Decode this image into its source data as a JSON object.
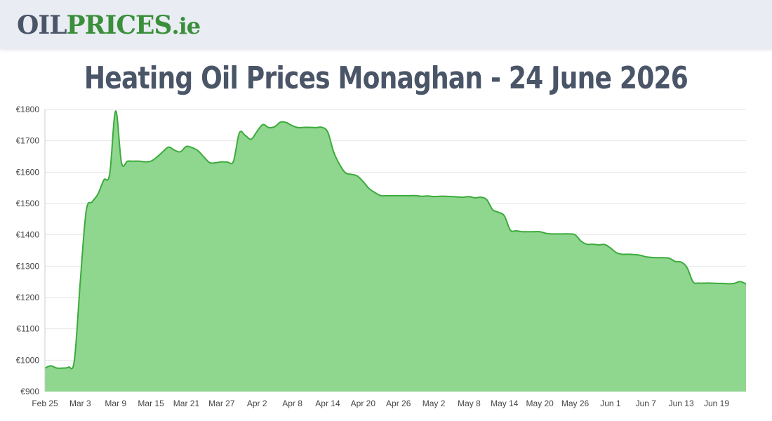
{
  "header": {
    "logo_oil": "OIL",
    "logo_prices": "PRICES",
    "logo_tld": ".ie"
  },
  "page": {
    "title": "Heating Oil Prices Monaghan - 24 June 2026"
  },
  "colors": {
    "line": "#3cab3c",
    "fill": "#8fd68f",
    "grid": "#e6e6e6"
  },
  "chart_data": {
    "type": "area",
    "title": "Heating Oil Prices Monaghan - 24 June 2026",
    "xlabel": "",
    "ylabel": "",
    "grid": true,
    "legend": "none",
    "ylim": [
      900,
      1800
    ],
    "y_ticks": [
      900,
      1000,
      1100,
      1200,
      1300,
      1400,
      1500,
      1600,
      1700,
      1800
    ],
    "y_tick_labels": [
      "€900",
      "€1000",
      "€1100",
      "€1200",
      "€1300",
      "€1400",
      "€1500",
      "€1600",
      "€1700",
      "€1800"
    ],
    "x_range": [
      "2026-02-25",
      "2026-06-24"
    ],
    "x_ticks": [
      "2026-02-25",
      "2026-03-03",
      "2026-03-09",
      "2026-03-15",
      "2026-03-21",
      "2026-03-27",
      "2026-04-02",
      "2026-04-08",
      "2026-04-14",
      "2026-04-20",
      "2026-04-26",
      "2026-05-02",
      "2026-05-08",
      "2026-05-14",
      "2026-05-20",
      "2026-05-26",
      "2026-06-01",
      "2026-06-07",
      "2026-06-13",
      "2026-06-19"
    ],
    "x_tick_labels": [
      "Feb 25",
      "Mar 3",
      "Mar 9",
      "Mar 15",
      "Mar 21",
      "Mar 27",
      "Apr 2",
      "Apr 8",
      "Apr 14",
      "Apr 20",
      "Apr 26",
      "May 2",
      "May 8",
      "May 14",
      "May 20",
      "May 26",
      "Jun 1",
      "Jun 7",
      "Jun 13",
      "Jun 19"
    ],
    "series": [
      {
        "points": [
          [
            "2026-02-25",
            975
          ],
          [
            "2026-02-26",
            982
          ],
          [
            "2026-02-27",
            975
          ],
          [
            "2026-02-28",
            975
          ],
          [
            "2026-03-01",
            978
          ],
          [
            "2026-03-02",
            1000
          ],
          [
            "2026-03-03",
            1250
          ],
          [
            "2026-03-04",
            1475
          ],
          [
            "2026-03-05",
            1505
          ],
          [
            "2026-03-06",
            1530
          ],
          [
            "2026-03-07",
            1575
          ],
          [
            "2026-03-08",
            1595
          ],
          [
            "2026-03-09",
            1795
          ],
          [
            "2026-03-10",
            1630
          ],
          [
            "2026-03-11",
            1635
          ],
          [
            "2026-03-12",
            1635
          ],
          [
            "2026-03-13",
            1635
          ],
          [
            "2026-03-14",
            1633
          ],
          [
            "2026-03-15",
            1635
          ],
          [
            "2026-03-16",
            1648
          ],
          [
            "2026-03-17",
            1665
          ],
          [
            "2026-03-18",
            1680
          ],
          [
            "2026-03-19",
            1670
          ],
          [
            "2026-03-20",
            1665
          ],
          [
            "2026-03-21",
            1682
          ],
          [
            "2026-03-22",
            1678
          ],
          [
            "2026-03-23",
            1668
          ],
          [
            "2026-03-24",
            1648
          ],
          [
            "2026-03-25",
            1630
          ],
          [
            "2026-03-26",
            1630
          ],
          [
            "2026-03-27",
            1633
          ],
          [
            "2026-03-28",
            1632
          ],
          [
            "2026-03-29",
            1635
          ],
          [
            "2026-03-30",
            1725
          ],
          [
            "2026-03-31",
            1717
          ],
          [
            "2026-04-01",
            1705
          ],
          [
            "2026-04-02",
            1730
          ],
          [
            "2026-04-03",
            1752
          ],
          [
            "2026-04-04",
            1742
          ],
          [
            "2026-04-05",
            1745
          ],
          [
            "2026-04-06",
            1760
          ],
          [
            "2026-04-07",
            1758
          ],
          [
            "2026-04-08",
            1748
          ],
          [
            "2026-04-09",
            1742
          ],
          [
            "2026-04-10",
            1743
          ],
          [
            "2026-04-11",
            1743
          ],
          [
            "2026-04-12",
            1742
          ],
          [
            "2026-04-13",
            1743
          ],
          [
            "2026-04-14",
            1728
          ],
          [
            "2026-04-15",
            1665
          ],
          [
            "2026-04-16",
            1625
          ],
          [
            "2026-04-17",
            1598
          ],
          [
            "2026-04-18",
            1593
          ],
          [
            "2026-04-19",
            1588
          ],
          [
            "2026-04-20",
            1570
          ],
          [
            "2026-04-21",
            1548
          ],
          [
            "2026-04-22",
            1535
          ],
          [
            "2026-04-23",
            1525
          ],
          [
            "2026-04-24",
            1525
          ],
          [
            "2026-04-25",
            1525
          ],
          [
            "2026-04-26",
            1525
          ],
          [
            "2026-04-27",
            1525
          ],
          [
            "2026-04-28",
            1525
          ],
          [
            "2026-04-29",
            1525
          ],
          [
            "2026-04-30",
            1523
          ],
          [
            "2026-05-01",
            1524
          ],
          [
            "2026-05-02",
            1522
          ],
          [
            "2026-05-03",
            1523
          ],
          [
            "2026-05-04",
            1523
          ],
          [
            "2026-05-05",
            1522
          ],
          [
            "2026-05-06",
            1521
          ],
          [
            "2026-05-07",
            1520
          ],
          [
            "2026-05-08",
            1522
          ],
          [
            "2026-05-09",
            1518
          ],
          [
            "2026-05-10",
            1520
          ],
          [
            "2026-05-11",
            1512
          ],
          [
            "2026-05-12",
            1480
          ],
          [
            "2026-05-13",
            1472
          ],
          [
            "2026-05-14",
            1460
          ],
          [
            "2026-05-15",
            1415
          ],
          [
            "2026-05-16",
            1413
          ],
          [
            "2026-05-17",
            1410
          ],
          [
            "2026-05-18",
            1410
          ],
          [
            "2026-05-19",
            1410
          ],
          [
            "2026-05-20",
            1410
          ],
          [
            "2026-05-21",
            1405
          ],
          [
            "2026-05-22",
            1403
          ],
          [
            "2026-05-23",
            1403
          ],
          [
            "2026-05-24",
            1403
          ],
          [
            "2026-05-25",
            1403
          ],
          [
            "2026-05-26",
            1400
          ],
          [
            "2026-05-27",
            1380
          ],
          [
            "2026-05-28",
            1370
          ],
          [
            "2026-05-29",
            1370
          ],
          [
            "2026-05-30",
            1368
          ],
          [
            "2026-05-31",
            1369
          ],
          [
            "2026-06-01",
            1358
          ],
          [
            "2026-06-02",
            1343
          ],
          [
            "2026-06-03",
            1338
          ],
          [
            "2026-06-04",
            1338
          ],
          [
            "2026-06-05",
            1337
          ],
          [
            "2026-06-06",
            1335
          ],
          [
            "2026-06-07",
            1330
          ],
          [
            "2026-06-08",
            1328
          ],
          [
            "2026-06-09",
            1327
          ],
          [
            "2026-06-10",
            1327
          ],
          [
            "2026-06-11",
            1325
          ],
          [
            "2026-06-12",
            1315
          ],
          [
            "2026-06-13",
            1313
          ],
          [
            "2026-06-14",
            1295
          ],
          [
            "2026-06-15",
            1250
          ],
          [
            "2026-06-16",
            1246
          ],
          [
            "2026-06-17",
            1246
          ],
          [
            "2026-06-18",
            1246
          ],
          [
            "2026-06-19",
            1245
          ],
          [
            "2026-06-20",
            1245
          ],
          [
            "2026-06-21",
            1244
          ],
          [
            "2026-06-22",
            1245
          ],
          [
            "2026-06-23",
            1251
          ],
          [
            "2026-06-24",
            1243
          ]
        ]
      }
    ]
  }
}
